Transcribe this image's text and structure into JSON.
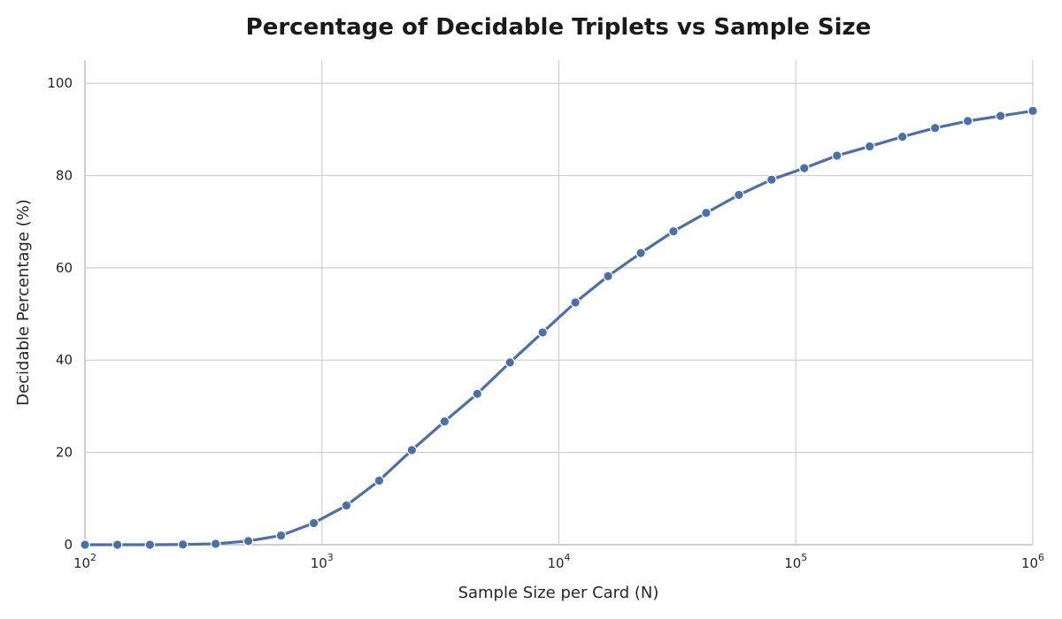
{
  "chart_data": {
    "type": "line",
    "title": "Percentage of Decidable Triplets vs Sample Size",
    "xlabel": "Sample Size per Card (N)",
    "ylabel": "Decidable Percentage (%)",
    "xscale": "log",
    "xlim": [
      100,
      1000000
    ],
    "ylim": [
      0,
      105
    ],
    "grid": true,
    "x_ticks": [
      {
        "value": 100,
        "base": "10",
        "exp": "2"
      },
      {
        "value": 1000,
        "base": "10",
        "exp": "3"
      },
      {
        "value": 10000,
        "base": "10",
        "exp": "4"
      },
      {
        "value": 100000,
        "base": "10",
        "exp": "5"
      },
      {
        "value": 1000000,
        "base": "10",
        "exp": "6"
      }
    ],
    "y_ticks": [
      {
        "value": 0,
        "label": "0"
      },
      {
        "value": 20,
        "label": "20"
      },
      {
        "value": 40,
        "label": "40"
      },
      {
        "value": 60,
        "label": "60"
      },
      {
        "value": 80,
        "label": "80"
      },
      {
        "value": 100,
        "label": "100"
      }
    ],
    "series": [
      {
        "name": "Decidable Percentage",
        "color": "#4a6fa9",
        "x": [
          100,
          137,
          188,
          259,
          356,
          489,
          672,
          924,
          1269,
          1744,
          2396,
          3292,
          4524,
          6215,
          8541,
          11736,
          16127,
          22158,
          30448,
          41840,
          57488,
          78987,
          108546,
          149153,
          204959,
          281646,
          387012,
          531792,
          730794,
          1000000
        ],
        "y": [
          0.0,
          0.0,
          0.0,
          0.05,
          0.2,
          0.8,
          2.0,
          4.7,
          8.5,
          13.9,
          20.5,
          26.7,
          32.7,
          39.5,
          46.0,
          52.5,
          58.2,
          63.2,
          67.9,
          71.9,
          75.8,
          79.1,
          81.6,
          84.3,
          86.3,
          88.4,
          90.3,
          91.8,
          92.9,
          94.0
        ]
      }
    ]
  }
}
